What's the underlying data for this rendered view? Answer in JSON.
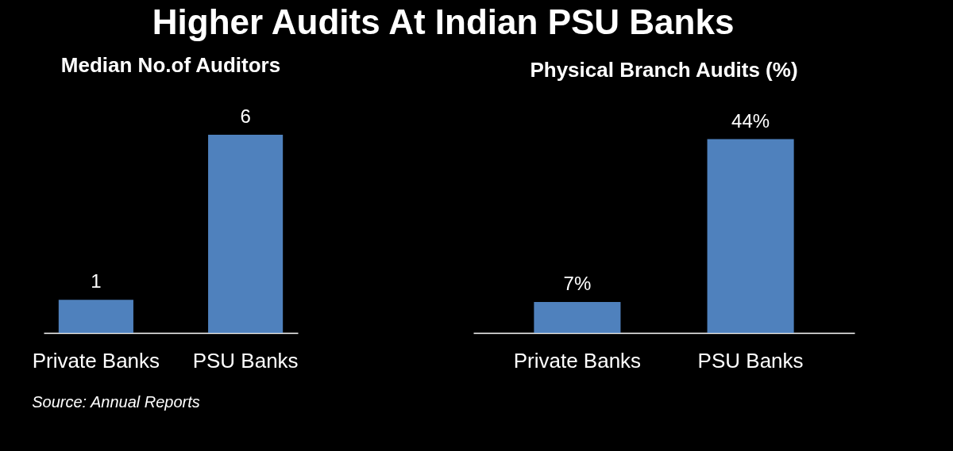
{
  "chart_data": [
    {
      "type": "bar",
      "title": "Higher Audits At Indian PSU Banks",
      "subtitle": "Median No.of Auditors",
      "categories": [
        "Private Banks",
        "PSU Banks"
      ],
      "values": [
        1,
        6
      ],
      "color": "#4f81bd",
      "data_labels": true
    },
    {
      "type": "bar",
      "title": "Physical Branch Audits (%)",
      "categories": [
        "Private Banks",
        "PSU Banks"
      ],
      "values": [
        7,
        44
      ],
      "value_labels": [
        "7%",
        "44%"
      ],
      "color": "#4f81bd",
      "annotations": [
        "Source: Annual Reports"
      ]
    }
  ]
}
